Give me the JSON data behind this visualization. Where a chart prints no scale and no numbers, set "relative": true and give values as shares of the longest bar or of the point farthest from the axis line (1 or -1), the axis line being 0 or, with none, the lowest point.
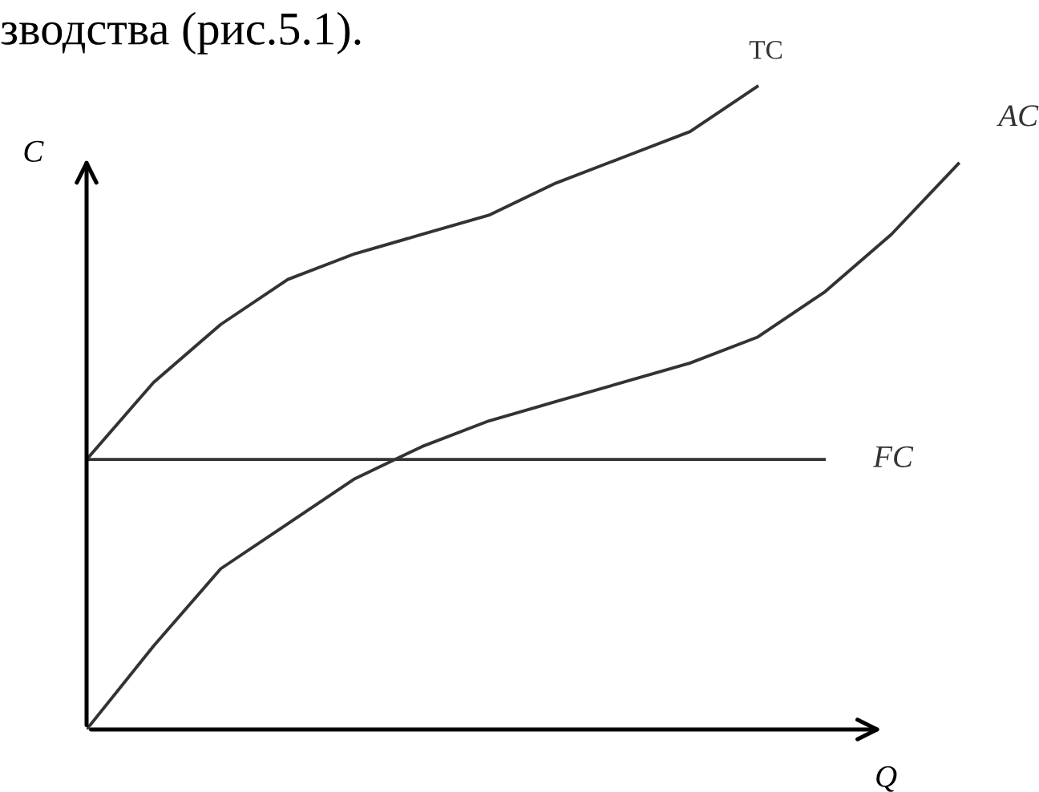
{
  "chart_data": {
    "type": "line",
    "relative": true,
    "xlabel": "Q",
    "ylabel": "C",
    "annotations": [
      "зводства (рис.5.1)."
    ],
    "marker": "none",
    "line_style": "solid",
    "categories": [
      null,
      null,
      null,
      null,
      null,
      null,
      null,
      null,
      null,
      null,
      null,
      null,
      null,
      null
    ],
    "series": [
      {
        "name": "TC",
        "color": "#333333",
        "values": [
          0.42,
          0.54,
          0.63,
          0.7,
          0.74,
          0.77,
          0.8,
          0.85,
          0.89,
          0.93,
          1.0,
          null,
          null,
          null
        ]
      },
      {
        "name": "AC",
        "color": "#333333",
        "values": [
          0,
          0.13,
          0.25,
          0.32,
          0.39,
          0.44,
          0.48,
          0.51,
          0.54,
          0.57,
          0.61,
          0.68,
          0.77,
          0.88
        ]
      },
      {
        "name": "FC",
        "color": "#333333",
        "values": [
          0.42,
          0.42,
          0.42,
          0.42,
          0.42,
          0.42,
          0.42,
          0.42,
          0.42,
          0.42,
          0.42,
          0.42,
          null,
          null
        ]
      }
    ]
  }
}
